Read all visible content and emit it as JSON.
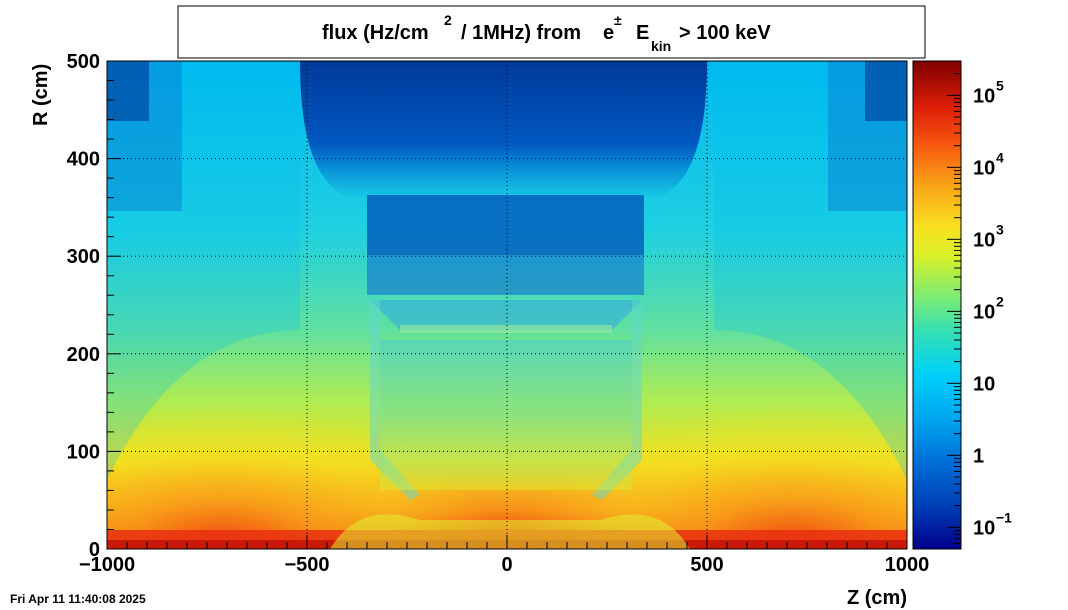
{
  "timestamp": "Fri Apr 11 11:40:08 2025",
  "chart_data": {
    "type": "heatmap",
    "title": {
      "part1": "flux (Hz/cm",
      "sup1": "2",
      "part2": "/ 1MHz) from",
      "part3": "e",
      "sup2": "±",
      "part4": "E",
      "sub1": "kin",
      "part5": "> 100 keV"
    },
    "xlabel": "Z (cm)",
    "ylabel": "R (cm)",
    "xlim": [
      -1000,
      1000
    ],
    "ylim": [
      0,
      500
    ],
    "x_ticks": [
      {
        "value": -1000,
        "label": "−1000"
      },
      {
        "value": -500,
        "label": "−500"
      },
      {
        "value": 0,
        "label": "0"
      },
      {
        "value": 500,
        "label": "500"
      },
      {
        "value": 1000,
        "label": "1000"
      }
    ],
    "y_ticks": [
      {
        "value": 0,
        "label": "0"
      },
      {
        "value": 100,
        "label": "100"
      },
      {
        "value": 200,
        "label": "200"
      },
      {
        "value": 300,
        "label": "300"
      },
      {
        "value": 400,
        "label": "400"
      },
      {
        "value": 500,
        "label": "500"
      }
    ],
    "grid": true,
    "z_scale": "log",
    "z_range": [
      0.05,
      300000
    ],
    "colorbar_ticks": [
      {
        "value": 0.1,
        "base": "10",
        "exp": "−1"
      },
      {
        "value": 1,
        "base": "1",
        "exp": ""
      },
      {
        "value": 10,
        "base": "10",
        "exp": ""
      },
      {
        "value": 100,
        "base": "10",
        "exp": "2"
      },
      {
        "value": 1000,
        "base": "10",
        "exp": "3"
      },
      {
        "value": 10000,
        "base": "10",
        "exp": "4"
      },
      {
        "value": 100000,
        "base": "10",
        "exp": "5"
      }
    ],
    "colormap": [
      "#00008b",
      "#0048c0",
      "#0090e0",
      "#00c8f8",
      "#28d8c8",
      "#60e890",
      "#c0f040",
      "#f8f020",
      "#f8c018",
      "#f88010",
      "#f03008",
      "#c00808",
      "#800000"
    ],
    "approx_values": [
      {
        "z": 0,
        "r": 5,
        "flux": 3000
      },
      {
        "z": -900,
        "r": 10,
        "flux": 100000
      },
      {
        "z": 900,
        "r": 10,
        "flux": 100000
      },
      {
        "z": -700,
        "r": 100,
        "flux": 3000
      },
      {
        "z": 0,
        "r": 150,
        "flux": 70
      },
      {
        "z": 0,
        "r": 300,
        "flux": 2
      },
      {
        "z": 0,
        "r": 350,
        "flux": 0.5
      },
      {
        "z": 0,
        "r": 470,
        "flux": 1
      },
      {
        "z": -950,
        "r": 480,
        "flux": 1
      },
      {
        "z": -600,
        "r": 480,
        "flux": 10
      }
    ]
  }
}
